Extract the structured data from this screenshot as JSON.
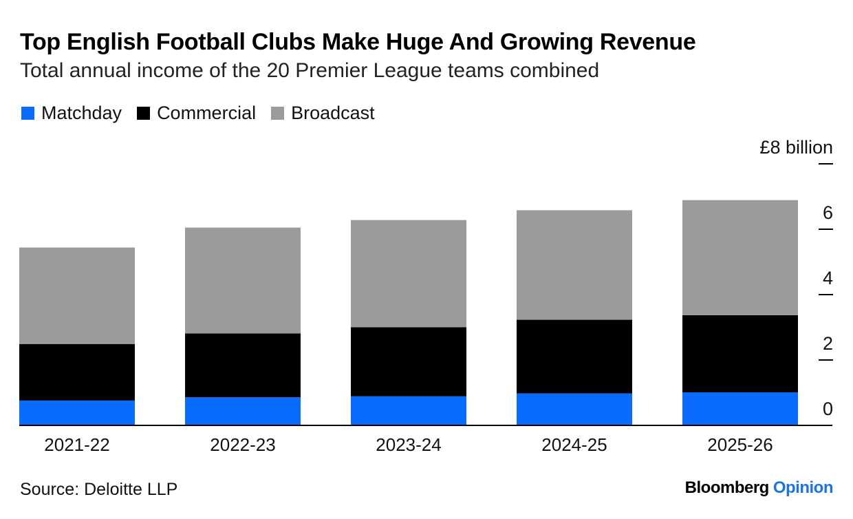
{
  "title": "Top English Football Clubs Make Huge And Growing Revenue",
  "subtitle": "Total annual income of the 20 Premier League teams combined",
  "source": "Source: Deloitte LLP",
  "brand": {
    "name": "Bloomberg",
    "section": "Opinion",
    "accent_color": "#1a73e8"
  },
  "chart_data": {
    "type": "bar",
    "stacked": true,
    "categories": [
      "2021-22",
      "2022-23",
      "2023-24",
      "2024-25",
      "2025-26"
    ],
    "series": [
      {
        "name": "Matchday",
        "color": "#0a6cff",
        "values": [
          0.76,
          0.86,
          0.89,
          0.98,
          1.01
        ]
      },
      {
        "name": "Commercial",
        "color": "#000000",
        "values": [
          1.73,
          1.95,
          2.11,
          2.25,
          2.36
        ]
      },
      {
        "name": "Broadcast",
        "color": "#9b9b9b",
        "values": [
          2.95,
          3.24,
          3.28,
          3.35,
          3.52
        ]
      }
    ],
    "ylim": [
      0,
      8
    ],
    "yticks": [
      0,
      2,
      4,
      6,
      8
    ],
    "ytick_labels": [
      "0",
      "2",
      "4",
      "6",
      "£8 billion"
    ],
    "yaxis_position": "right",
    "legend_position": "top-left",
    "grid": false
  }
}
